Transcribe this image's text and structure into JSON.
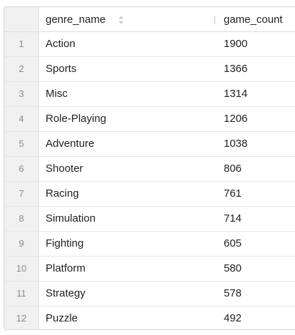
{
  "table": {
    "columns": [
      "genre_name",
      "game_count"
    ],
    "sort_icon": "sort-updown-icon",
    "rows": [
      {
        "n": "1",
        "genre": "Action",
        "count": "1900"
      },
      {
        "n": "2",
        "genre": "Sports",
        "count": "1366"
      },
      {
        "n": "3",
        "genre": "Misc",
        "count": "1314"
      },
      {
        "n": "4",
        "genre": "Role-Playing",
        "count": "1206"
      },
      {
        "n": "5",
        "genre": "Adventure",
        "count": "1038"
      },
      {
        "n": "6",
        "genre": "Shooter",
        "count": "806"
      },
      {
        "n": "7",
        "genre": "Racing",
        "count": "761"
      },
      {
        "n": "8",
        "genre": "Simulation",
        "count": "714"
      },
      {
        "n": "9",
        "genre": "Fighting",
        "count": "605"
      },
      {
        "n": "10",
        "genre": "Platform",
        "count": "580"
      },
      {
        "n": "11",
        "genre": "Strategy",
        "count": "578"
      },
      {
        "n": "12",
        "genre": "Puzzle",
        "count": "492"
      }
    ]
  }
}
